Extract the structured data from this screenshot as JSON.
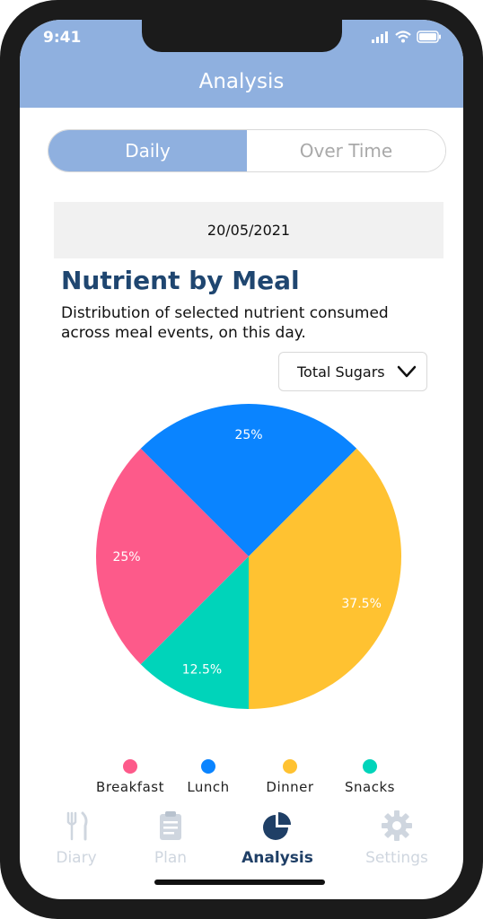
{
  "status": {
    "time": "9:41"
  },
  "header": {
    "title": "Analysis"
  },
  "segmented": {
    "daily": "Daily",
    "over_time": "Over Time"
  },
  "date": "20/05/2021",
  "section": {
    "title": "Nutrient by Meal",
    "description": "Distribution of selected nutrient consumed across meal events, on this day."
  },
  "dropdown": {
    "selected": "Total Sugars"
  },
  "colors": {
    "breakfast": "#fd5a8a",
    "lunch": "#0a84ff",
    "dinner": "#ffc231",
    "snacks": "#00d4ba",
    "accent": "#8fb0df",
    "title": "#1f4670"
  },
  "chart_data": {
    "type": "pie",
    "categories": [
      "Breakfast",
      "Lunch",
      "Dinner",
      "Snacks"
    ],
    "values": [
      25,
      25,
      37.5,
      12.5
    ],
    "data_labels": [
      "25%",
      "25%",
      "37.5%",
      "12.5%"
    ],
    "legend": "bottom"
  },
  "legend": {
    "breakfast": "Breakfast",
    "lunch": "Lunch",
    "dinner": "Dinner",
    "snacks": "Snacks"
  },
  "tabs": {
    "diary": "Diary",
    "plan": "Plan",
    "analysis": "Analysis",
    "settings": "Settings"
  }
}
